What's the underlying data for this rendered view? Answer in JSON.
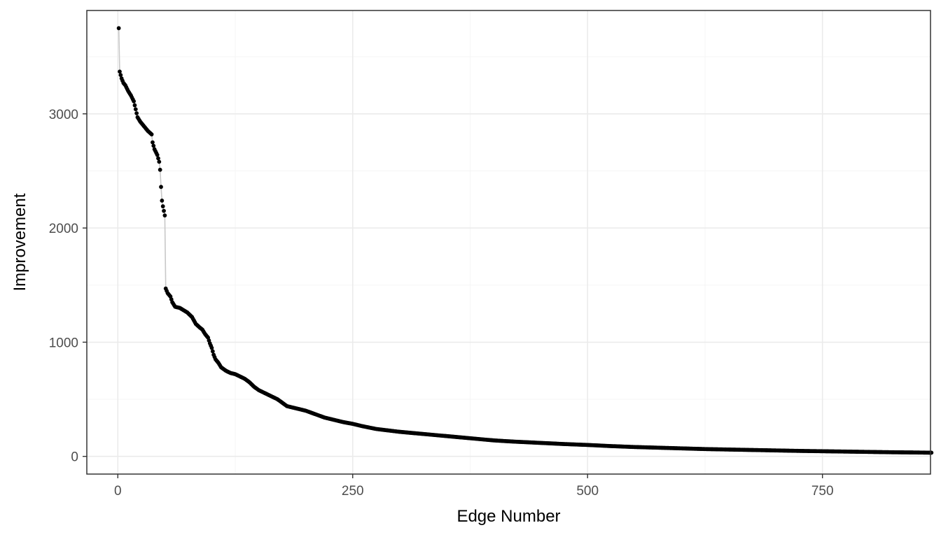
{
  "chart_data": {
    "type": "scatter",
    "xlabel": "Edge Number",
    "ylabel": "Improvement",
    "xlim": [
      -33,
      865
    ],
    "ylim": [
      -155,
      3905
    ],
    "x_ticks": [
      0,
      250,
      500,
      750
    ],
    "x_tick_labels": [
      "0",
      "250",
      "500",
      "750"
    ],
    "x_minor_ticks": [
      125,
      375,
      625
    ],
    "y_ticks": [
      0,
      1000,
      2000,
      3000
    ],
    "y_tick_labels": [
      "0",
      "1000",
      "2000",
      "3000"
    ],
    "y_minor_ticks": [
      500,
      1500,
      2500,
      3500
    ],
    "n_points": 866,
    "grid": true,
    "legend": "none",
    "series": [
      {
        "style": "points connected by a light grey line",
        "key_points": [
          {
            "x": 1,
            "y": 3750
          },
          {
            "x": 2,
            "y": 3370
          },
          {
            "x": 4,
            "y": 3310
          },
          {
            "x": 6,
            "y": 3270
          },
          {
            "x": 8,
            "y": 3250
          },
          {
            "x": 11,
            "y": 3200
          },
          {
            "x": 14,
            "y": 3160
          },
          {
            "x": 17,
            "y": 3110
          },
          {
            "x": 19,
            "y": 3040
          },
          {
            "x": 21,
            "y": 2970
          },
          {
            "x": 24,
            "y": 2930
          },
          {
            "x": 28,
            "y": 2890
          },
          {
            "x": 32,
            "y": 2850
          },
          {
            "x": 36,
            "y": 2820
          },
          {
            "x": 37,
            "y": 2750
          },
          {
            "x": 39,
            "y": 2690
          },
          {
            "x": 42,
            "y": 2640
          },
          {
            "x": 44,
            "y": 2580
          },
          {
            "x": 45,
            "y": 2510
          },
          {
            "x": 46,
            "y": 2360
          },
          {
            "x": 47,
            "y": 2240
          },
          {
            "x": 48,
            "y": 2190
          },
          {
            "x": 49,
            "y": 2150
          },
          {
            "x": 50,
            "y": 2110
          },
          {
            "x": 51,
            "y": 1470
          },
          {
            "x": 53,
            "y": 1430
          },
          {
            "x": 56,
            "y": 1400
          },
          {
            "x": 58,
            "y": 1350
          },
          {
            "x": 61,
            "y": 1310
          },
          {
            "x": 66,
            "y": 1300
          },
          {
            "x": 70,
            "y": 1280
          },
          {
            "x": 74,
            "y": 1260
          },
          {
            "x": 79,
            "y": 1220
          },
          {
            "x": 83,
            "y": 1160
          },
          {
            "x": 87,
            "y": 1130
          },
          {
            "x": 90,
            "y": 1110
          },
          {
            "x": 93,
            "y": 1070
          },
          {
            "x": 96,
            "y": 1040
          },
          {
            "x": 98,
            "y": 990
          },
          {
            "x": 100,
            "y": 950
          },
          {
            "x": 102,
            "y": 890
          },
          {
            "x": 104,
            "y": 850
          },
          {
            "x": 107,
            "y": 820
          },
          {
            "x": 110,
            "y": 780
          },
          {
            "x": 115,
            "y": 750
          },
          {
            "x": 120,
            "y": 730
          },
          {
            "x": 125,
            "y": 720
          },
          {
            "x": 130,
            "y": 700
          },
          {
            "x": 135,
            "y": 680
          },
          {
            "x": 140,
            "y": 650
          },
          {
            "x": 145,
            "y": 610
          },
          {
            "x": 150,
            "y": 580
          },
          {
            "x": 160,
            "y": 540
          },
          {
            "x": 170,
            "y": 500
          },
          {
            "x": 175,
            "y": 470
          },
          {
            "x": 180,
            "y": 440
          },
          {
            "x": 190,
            "y": 420
          },
          {
            "x": 200,
            "y": 400
          },
          {
            "x": 210,
            "y": 370
          },
          {
            "x": 220,
            "y": 340
          },
          {
            "x": 230,
            "y": 320
          },
          {
            "x": 240,
            "y": 300
          },
          {
            "x": 250,
            "y": 285
          },
          {
            "x": 260,
            "y": 265
          },
          {
            "x": 275,
            "y": 240
          },
          {
            "x": 290,
            "y": 225
          },
          {
            "x": 300,
            "y": 215
          },
          {
            "x": 320,
            "y": 200
          },
          {
            "x": 340,
            "y": 185
          },
          {
            "x": 360,
            "y": 170
          },
          {
            "x": 380,
            "y": 155
          },
          {
            "x": 400,
            "y": 140
          },
          {
            "x": 420,
            "y": 130
          },
          {
            "x": 450,
            "y": 118
          },
          {
            "x": 475,
            "y": 108
          },
          {
            "x": 500,
            "y": 100
          },
          {
            "x": 525,
            "y": 90
          },
          {
            "x": 550,
            "y": 82
          },
          {
            "x": 575,
            "y": 76
          },
          {
            "x": 600,
            "y": 70
          },
          {
            "x": 625,
            "y": 64
          },
          {
            "x": 650,
            "y": 60
          },
          {
            "x": 675,
            "y": 56
          },
          {
            "x": 700,
            "y": 52
          },
          {
            "x": 725,
            "y": 48
          },
          {
            "x": 750,
            "y": 45
          },
          {
            "x": 775,
            "y": 42
          },
          {
            "x": 800,
            "y": 39
          },
          {
            "x": 825,
            "y": 36
          },
          {
            "x": 850,
            "y": 34
          },
          {
            "x": 866,
            "y": 32
          }
        ]
      }
    ]
  },
  "colors": {
    "background": "#ffffff",
    "panel_border": "#333333",
    "grid_major": "#ebebeb",
    "grid_minor": "#f5f5f5",
    "line": "#c8c8c8",
    "point": "#000000",
    "tick_label": "#4d4d4d",
    "axis_title": "#000000"
  }
}
